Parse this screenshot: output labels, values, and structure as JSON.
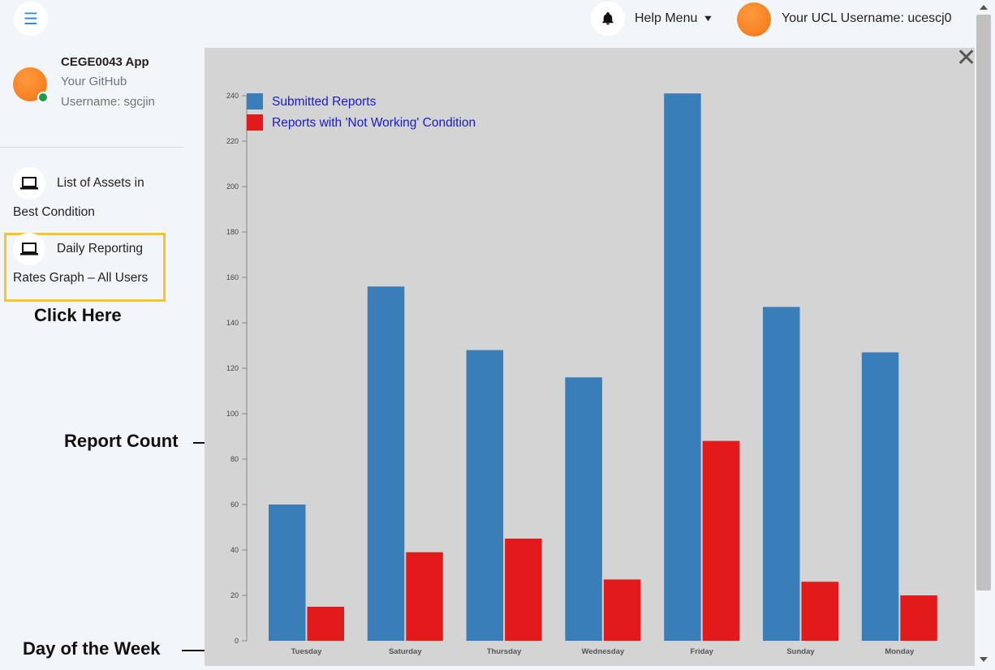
{
  "header": {
    "help_menu_label": "Help Menu",
    "username_label": "Your UCL Username: ucescj0"
  },
  "sidebar": {
    "app_title": "CEGE0043 App",
    "github_line1": "Your GitHub",
    "github_line2": "Username: sgcjin",
    "items": [
      {
        "label_line1": "List of Assets in",
        "label_line2": "Best Condition",
        "icon": "laptop-icon"
      },
      {
        "label_line1": "Daily Reporting",
        "label_line2": "Rates Graph – All Users",
        "icon": "laptop-icon"
      }
    ]
  },
  "annotations": {
    "click_here": "Click Here",
    "report_count": "Report Count",
    "day_of_week": "Day of the Week"
  },
  "colors": {
    "submitted": "#3a7eb9",
    "not_working": "#e31a1c",
    "highlight": "#f7c625",
    "panel_bg": "#d4d4d4"
  },
  "chart_data": {
    "type": "bar",
    "categories": [
      "Tuesday",
      "Saturday",
      "Thursday",
      "Wednesday",
      "Friday",
      "Sunday",
      "Monday"
    ],
    "series": [
      {
        "name": "Submitted Reports",
        "color": "#3a7eb9",
        "values": [
          60,
          156,
          128,
          116,
          241,
          147,
          127
        ]
      },
      {
        "name": "Reports with 'Not Working' Condition",
        "color": "#e31a1c",
        "values": [
          15,
          39,
          45,
          27,
          88,
          26,
          20
        ]
      }
    ],
    "ylim": [
      0,
      240
    ],
    "yticks": [
      0,
      20,
      40,
      60,
      80,
      100,
      120,
      140,
      160,
      180,
      200,
      220,
      240
    ],
    "legend_position": "top-left",
    "grid": false
  }
}
